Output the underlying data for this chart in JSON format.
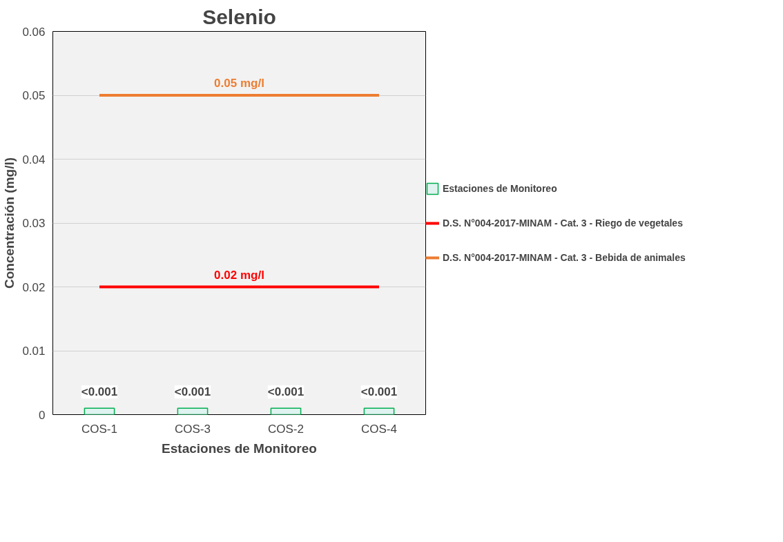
{
  "chart_data": {
    "type": "bar",
    "title": "Selenio",
    "xlabel": "Estaciones de Monitoreo",
    "ylabel": "Concentración (mg/l)",
    "categories": [
      "COS-1",
      "COS-3",
      "COS-2",
      "COS-4"
    ],
    "series": [
      {
        "name": "Estaciones de Monitoreo",
        "color": "#dff3f0",
        "values": [
          0.001,
          0.001,
          0.001,
          0.001
        ],
        "value_labels": [
          "<0.001",
          "<0.001",
          "<0.001",
          "<0.001"
        ]
      },
      {
        "name": "D.S. N°004-2017-MINAM - Cat. 3 - Riego de vegetales",
        "type": "line",
        "color": "#ff0000",
        "values": [
          0.02,
          0.02,
          0.02,
          0.02
        ]
      },
      {
        "name": "D.S. N°004-2017-MINAM - Cat. 3 - Bebida de animales",
        "type": "line",
        "color": "#ed7d31",
        "values": [
          0.05,
          0.05,
          0.05,
          0.05
        ]
      }
    ],
    "annotations": [
      {
        "text": "0.02 mg/l",
        "y": 0.02
      },
      {
        "text": "0.05 mg/l",
        "y": 0.05
      }
    ],
    "ylim": [
      0,
      0.06
    ],
    "yticks": [
      0,
      0.01,
      0.02,
      0.03,
      0.04,
      0.05,
      0.06
    ],
    "grid": "y",
    "legend": "right"
  }
}
